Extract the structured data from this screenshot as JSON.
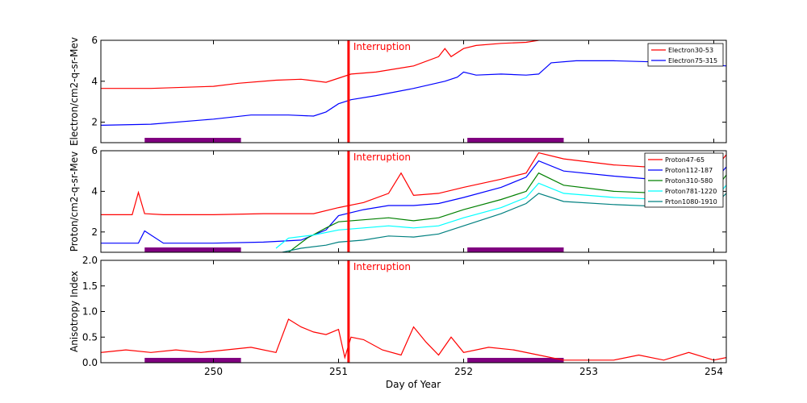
{
  "chart_data": {
    "type": "line",
    "xlabel": "Day of Year",
    "xlim": [
      249.1,
      254.1
    ],
    "x_ticks": [
      "250",
      "251",
      "252",
      "253",
      "254"
    ],
    "interruption": {
      "day": 251.08,
      "label": "Interruption",
      "color": "#ff0000"
    },
    "bars": {
      "color": "#800080",
      "intervals": [
        [
          249.45,
          250.22
        ],
        [
          252.03,
          252.8
        ]
      ]
    },
    "panels": [
      {
        "id": "electron",
        "ylabel": "Electron/cm2-q-sr-Mev",
        "ylim": [
          1,
          6
        ],
        "y_ticks": [
          "2",
          "4",
          "6"
        ],
        "series": [
          {
            "name": "Electron30-53",
            "color": "#ff0000",
            "x": [
              249.1,
              249.5,
              250.0,
              250.2,
              250.5,
              250.7,
              250.9,
              251.0,
              251.1,
              251.3,
              251.6,
              251.8,
              251.85,
              251.9,
              252.0,
              252.1,
              252.3,
              252.5,
              252.6
            ],
            "y": [
              3.65,
              3.65,
              3.75,
              3.9,
              4.05,
              4.1,
              3.95,
              4.15,
              4.35,
              4.45,
              4.75,
              5.2,
              5.6,
              5.2,
              5.6,
              5.75,
              5.85,
              5.9,
              6.0
            ]
          },
          {
            "name": "Electron75-315",
            "color": "#0000ff",
            "x": [
              249.1,
              249.5,
              250.0,
              250.3,
              250.6,
              250.8,
              250.9,
              251.0,
              251.1,
              251.3,
              251.6,
              251.85,
              251.95,
              252.0,
              252.1,
              252.3,
              252.5,
              252.6,
              252.7,
              252.9,
              253.2,
              253.5,
              253.8,
              254.1
            ],
            "y": [
              1.85,
              1.9,
              2.15,
              2.35,
              2.35,
              2.3,
              2.5,
              2.9,
              3.1,
              3.3,
              3.65,
              4.0,
              4.2,
              4.45,
              4.3,
              4.35,
              4.3,
              4.35,
              4.9,
              5.0,
              5.0,
              4.95,
              4.9,
              4.75
            ]
          }
        ]
      },
      {
        "id": "proton",
        "ylabel": "Proton/cm2-q-sr-Mev",
        "ylim": [
          1,
          6
        ],
        "y_ticks": [
          "2",
          "4",
          "6"
        ],
        "series": [
          {
            "name": "Proton47-65",
            "color": "#ff0000",
            "x": [
              249.1,
              249.35,
              249.4,
              249.45,
              249.6,
              250.0,
              250.4,
              250.8,
              251.0,
              251.2,
              251.4,
              251.5,
              251.6,
              251.8,
              252.0,
              252.3,
              252.5,
              252.6,
              252.8,
              253.2,
              253.6,
              254.0,
              254.1
            ],
            "y": [
              2.85,
              2.85,
              3.95,
              2.9,
              2.85,
              2.85,
              2.9,
              2.9,
              3.2,
              3.45,
              3.9,
              4.9,
              3.8,
              3.9,
              4.2,
              4.6,
              4.9,
              5.9,
              5.6,
              5.3,
              5.15,
              5.05,
              5.8
            ]
          },
          {
            "name": "Proton112-187",
            "color": "#0000ff",
            "x": [
              249.1,
              249.4,
              249.45,
              249.6,
              250.0,
              250.4,
              250.7,
              250.9,
              251.0,
              251.2,
              251.4,
              251.6,
              251.8,
              252.0,
              252.3,
              252.5,
              252.6,
              252.8,
              253.2,
              253.6,
              254.0,
              254.1
            ],
            "y": [
              1.45,
              1.45,
              2.05,
              1.45,
              1.45,
              1.5,
              1.6,
              2.1,
              2.8,
              3.1,
              3.3,
              3.3,
              3.4,
              3.7,
              4.2,
              4.7,
              5.5,
              5.0,
              4.75,
              4.55,
              4.5,
              5.2
            ]
          },
          {
            "name": "Proton310-580",
            "color": "#008000",
            "x": [
              250.6,
              250.75,
              250.9,
              251.0,
              251.2,
              251.4,
              251.6,
              251.8,
              252.0,
              252.3,
              252.5,
              252.6,
              252.8,
              253.2,
              253.6,
              254.0,
              254.1
            ],
            "y": [
              1.0,
              1.7,
              2.2,
              2.5,
              2.6,
              2.7,
              2.55,
              2.7,
              3.1,
              3.6,
              4.0,
              4.9,
              4.3,
              4.0,
              3.9,
              4.0,
              4.8
            ]
          },
          {
            "name": "Proton781-1220",
            "color": "#00ffff",
            "x": [
              250.5,
              250.6,
              250.8,
              251.0,
              251.2,
              251.4,
              251.6,
              251.8,
              252.0,
              252.3,
              252.5,
              252.6,
              252.8,
              253.2,
              253.6,
              254.0,
              254.1
            ],
            "y": [
              1.2,
              1.7,
              1.85,
              2.1,
              2.2,
              2.3,
              2.2,
              2.3,
              2.7,
              3.2,
              3.7,
              4.4,
              3.9,
              3.7,
              3.6,
              3.6,
              4.3
            ]
          },
          {
            "name": "Prton1080-1910",
            "color": "#008080",
            "x": [
              250.55,
              250.7,
              250.9,
              251.0,
              251.2,
              251.4,
              251.6,
              251.8,
              252.0,
              252.3,
              252.5,
              252.6,
              252.8,
              253.2,
              253.6,
              254.0,
              254.1
            ],
            "y": [
              1.0,
              1.2,
              1.35,
              1.5,
              1.6,
              1.8,
              1.75,
              1.9,
              2.3,
              2.9,
              3.4,
              3.9,
              3.5,
              3.35,
              3.25,
              3.3,
              3.9
            ]
          }
        ]
      },
      {
        "id": "anisotropy",
        "ylabel": "Anisotropy Index",
        "ylim": [
          0.0,
          2.0
        ],
        "y_ticks": [
          "0.0",
          "0.5",
          "1.0",
          "1.5",
          "2.0"
        ],
        "series": [
          {
            "name": "Anisotropy",
            "color": "#ff0000",
            "x": [
              249.1,
              249.3,
              249.5,
              249.7,
              249.9,
              250.1,
              250.3,
              250.5,
              250.6,
              250.7,
              250.8,
              250.9,
              251.0,
              251.05,
              251.1,
              251.2,
              251.35,
              251.5,
              251.6,
              251.7,
              251.8,
              251.9,
              252.0,
              252.2,
              252.4,
              252.6,
              252.8,
              253.0,
              253.2,
              253.4,
              253.6,
              253.8,
              254.0,
              254.1
            ],
            "y": [
              0.2,
              0.25,
              0.2,
              0.25,
              0.2,
              0.25,
              0.3,
              0.2,
              0.85,
              0.7,
              0.6,
              0.55,
              0.65,
              0.1,
              0.5,
              0.45,
              0.25,
              0.15,
              0.7,
              0.4,
              0.15,
              0.5,
              0.2,
              0.3,
              0.25,
              0.15,
              0.05,
              0.05,
              0.05,
              0.15,
              0.05,
              0.2,
              0.05,
              0.1
            ]
          }
        ]
      }
    ]
  }
}
